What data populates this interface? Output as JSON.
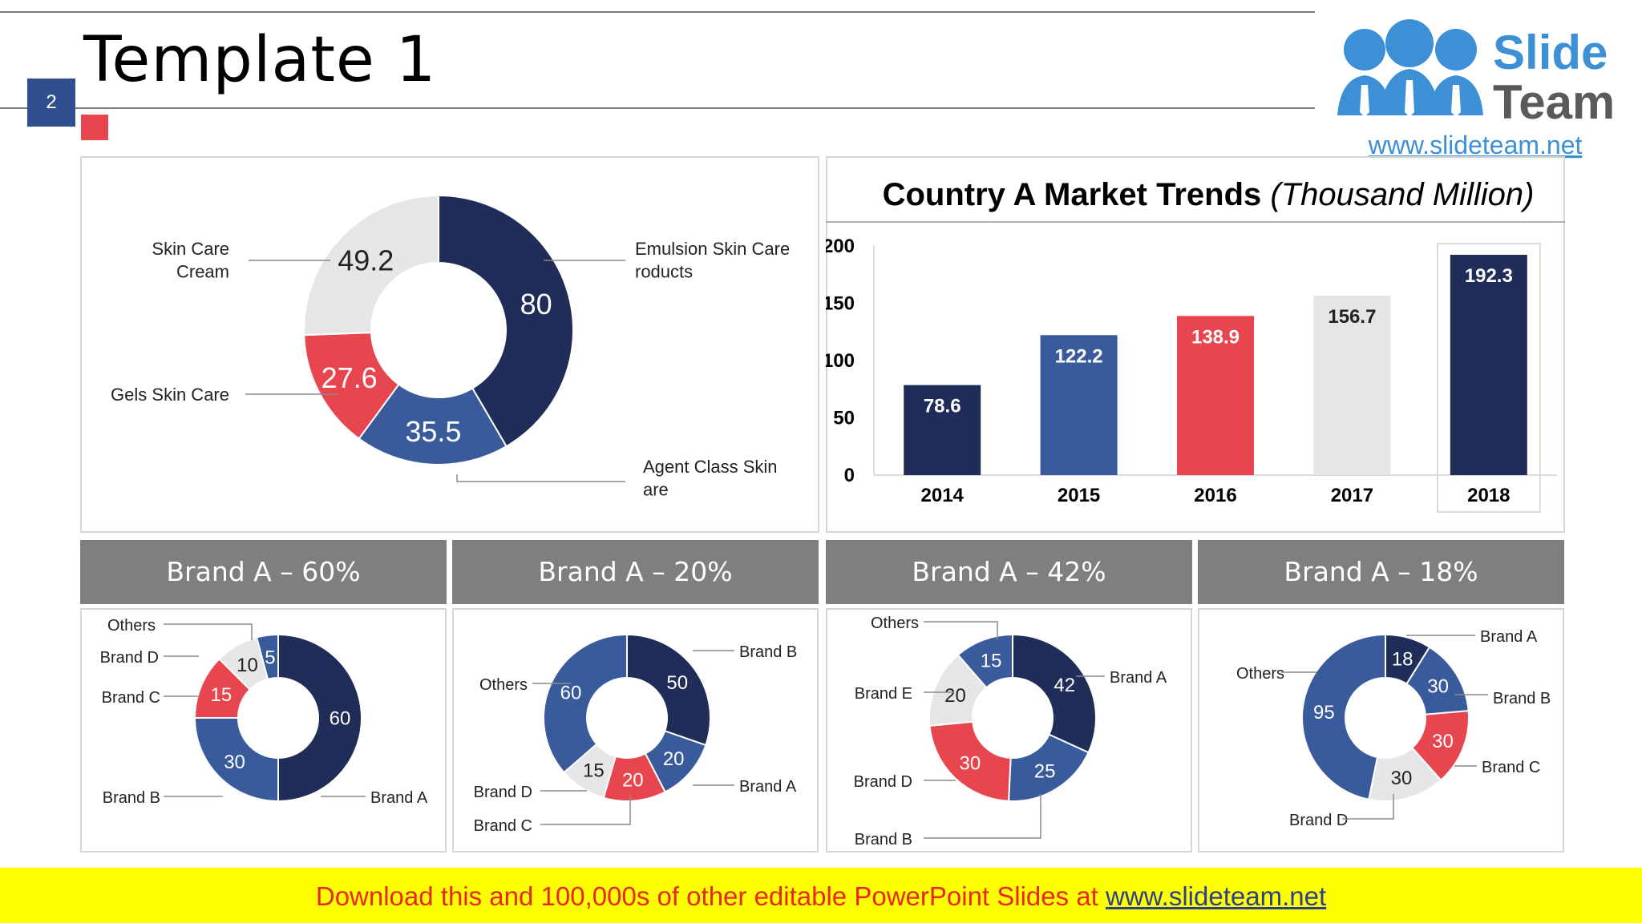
{
  "slide": {
    "title": "Template 1",
    "number": "2"
  },
  "logo": {
    "line1": "Slide",
    "line2": "Team",
    "url": "www.slideteam.net"
  },
  "footer": {
    "prefix": "Download this and 100,000s of other editable PowerPoint Slides at ",
    "link": "www.slideteam.net"
  },
  "colors": {
    "navy": "#1f2d58",
    "blue": "#3a5b9b",
    "red": "#e8464f",
    "grey": "#e6e6e9",
    "header": "#7f7f80",
    "accent": "#2f4f8f"
  },
  "bar_chart": {
    "title": "Country A Market Trends",
    "subtitle": "(Thousand Million)"
  },
  "brand_headers": [
    "Brand A – 60%",
    "Brand A – 20%",
    "Brand A – 42%",
    "Brand A – 18%"
  ],
  "chart_data": [
    {
      "type": "pie",
      "categories": [
        "Emulsion Skin Care Products",
        "Agent Class Skin Care",
        "Gels Skin Care",
        "Skin Care Cream"
      ],
      "values": [
        80,
        35.5,
        27.6,
        49.2
      ],
      "colors": [
        "#1f2d58",
        "#3a5b9b",
        "#e8464f",
        "#e6e6e9"
      ]
    },
    {
      "type": "bar",
      "title": "Country A Market Trends (Thousand Million)",
      "categories": [
        "2014",
        "2015",
        "2016",
        "2017",
        "2018"
      ],
      "values": [
        78.6,
        122.2,
        138.9,
        156.7,
        192.3
      ],
      "colors": [
        "#1f2d58",
        "#3a5b9b",
        "#e8464f",
        "#e6e6e9",
        "#1f2d58"
      ],
      "ylim": [
        0,
        200
      ],
      "yticks": [
        0,
        50,
        100,
        150,
        200
      ]
    },
    {
      "type": "pie",
      "title": "Brand A – 60%",
      "categories": [
        "Brand A",
        "Brand B",
        "Brand C",
        "Brand D",
        "Others"
      ],
      "values": [
        60,
        30,
        15,
        10,
        5
      ],
      "colors": [
        "#1f2d58",
        "#3a5b9b",
        "#e8464f",
        "#e6e6e9",
        "#3a5b9b"
      ]
    },
    {
      "type": "pie",
      "title": "Brand A – 20%",
      "categories": [
        "Brand B",
        "Brand A",
        "Brand C",
        "Brand D",
        "Others"
      ],
      "values": [
        50,
        20,
        20,
        15,
        60
      ],
      "colors": [
        "#1f2d58",
        "#3a5b9b",
        "#e8464f",
        "#e6e6e9",
        "#3a5b9b"
      ]
    },
    {
      "type": "pie",
      "title": "Brand A – 42%",
      "categories": [
        "Brand A",
        "Brand B",
        "Brand D",
        "Brand E",
        "Others"
      ],
      "values": [
        42,
        25,
        30,
        20,
        15
      ],
      "colors": [
        "#1f2d58",
        "#3a5b9b",
        "#e8464f",
        "#e6e6e9",
        "#3a5b9b"
      ]
    },
    {
      "type": "pie",
      "title": "Brand A – 18%",
      "categories": [
        "Brand A",
        "Brand B",
        "Brand C",
        "Brand D",
        "Others"
      ],
      "values": [
        18,
        30,
        30,
        30,
        95
      ],
      "colors": [
        "#1f2d58",
        "#3a5b9b",
        "#e8464f",
        "#e6e6e9",
        "#3a5b9b"
      ]
    }
  ]
}
